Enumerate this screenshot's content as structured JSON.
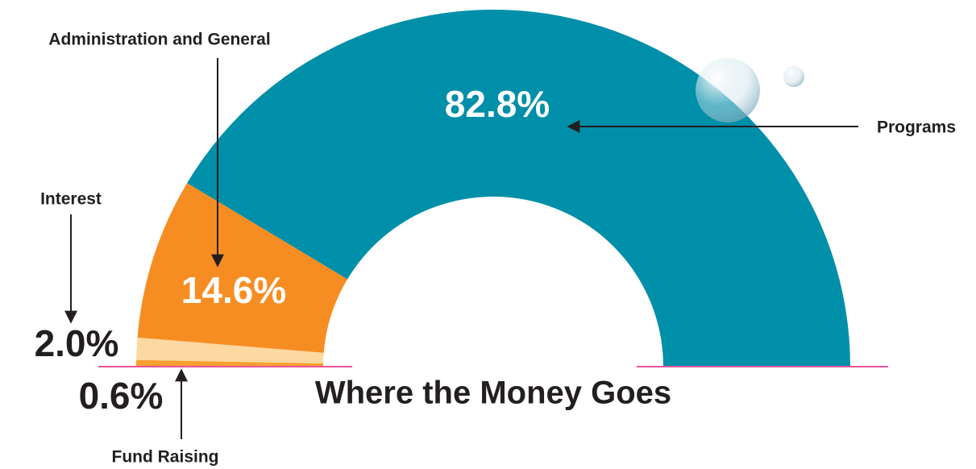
{
  "chart_data": {
    "type": "pie",
    "title": "Where the Money Goes",
    "categories": [
      "Fund Raising",
      "Interest",
      "Administration and General",
      "Programs"
    ],
    "values": [
      0.6,
      2.0,
      14.6,
      82.8
    ],
    "value_labels": [
      "0.6%",
      "2.0%",
      "14.6%",
      "82.8%"
    ],
    "colors": [
      "#f7a030",
      "#fdd8a0",
      "#f68d23",
      "#008fa9"
    ]
  }
}
